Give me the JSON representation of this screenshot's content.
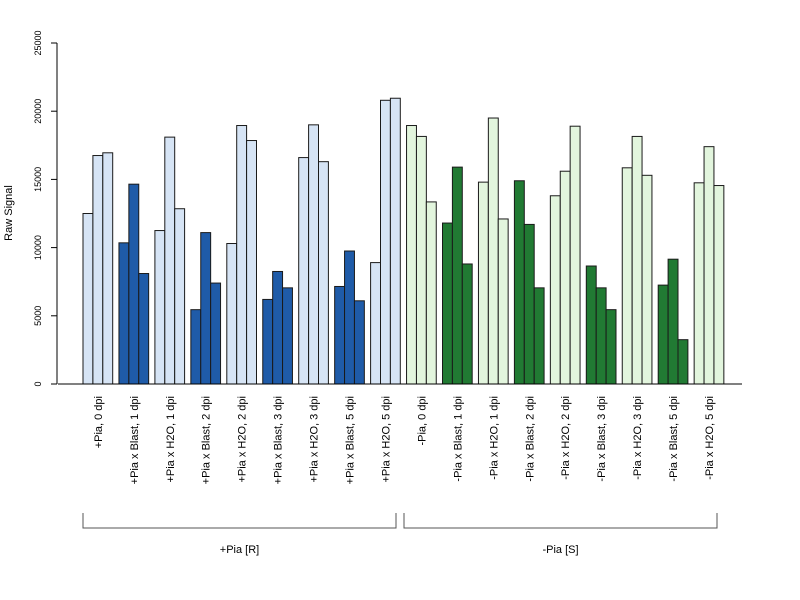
{
  "chart_data": {
    "type": "bar",
    "ylabel": "Raw Signal",
    "ylim": [
      0,
      25000
    ],
    "yticks": [
      0,
      5000,
      10000,
      15000,
      20000,
      25000
    ],
    "grid": false,
    "categories": [
      "+Pia, 0 dpi",
      "+Pia x Blast, 1 dpi",
      "+Pia x H2O, 1 dpi",
      "+Pia x Blast, 2 dpi",
      "+Pia x H2O, 2 dpi",
      "+Pia x Blast, 3 dpi",
      "+Pia x H2O, 3 dpi",
      "+Pia x Blast, 5 dpi",
      "+Pia x H2O, 5 dpi",
      "-Pia, 0 dpi",
      "-Pia x Blast, 1 dpi",
      "-Pia x H2O, 1 dpi",
      "-Pia x Blast, 2 dpi",
      "-Pia x H2O, 2 dpi",
      "-Pia x Blast, 3 dpi",
      "-Pia x H2O, 3 dpi",
      "-Pia x Blast, 5 dpi",
      "-Pia x H2O, 5 dpi"
    ],
    "values": [
      [
        12500,
        16750,
        16950
      ],
      [
        10350,
        14650,
        8100
      ],
      [
        11250,
        18100,
        12850
      ],
      [
        5450,
        11100,
        7400
      ],
      [
        10300,
        18950,
        17850
      ],
      [
        6200,
        8250,
        7050
      ],
      [
        16600,
        19000,
        16300
      ],
      [
        7150,
        9750,
        6100
      ],
      [
        8900,
        20800,
        20950
      ],
      [
        18950,
        18150,
        13350
      ],
      [
        11800,
        15900,
        8800
      ],
      [
        14800,
        19500,
        12100
      ],
      [
        14900,
        11700,
        7050
      ],
      [
        13800,
        15600,
        18900
      ],
      [
        8650,
        7050,
        5450
      ],
      [
        15850,
        18150,
        15300
      ],
      [
        7250,
        9150,
        3250
      ],
      [
        14750,
        17400,
        14550
      ]
    ],
    "bar_colors": [
      "#d6e4f5",
      "#1f5ba8",
      "#d6e4f5",
      "#1f5ba8",
      "#d6e4f5",
      "#1f5ba8",
      "#d6e4f5",
      "#1f5ba8",
      "#d6e4f5",
      "#e2f5dd",
      "#217a33",
      "#e2f5dd",
      "#217a33",
      "#e2f5dd",
      "#217a33",
      "#e2f5dd",
      "#217a33",
      "#e2f5dd"
    ],
    "groups": [
      {
        "label": "+Pia [R]",
        "first": 0,
        "last": 8
      },
      {
        "label": "-Pia [S]",
        "first": 9,
        "last": 17
      }
    ]
  }
}
